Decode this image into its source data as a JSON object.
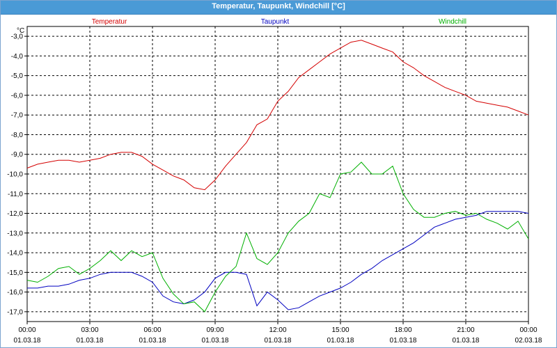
{
  "window_title": "Temperatur, Taupunkt, Windchill [°C]",
  "chart_data": {
    "type": "line",
    "title": "Temperatur, Taupunkt, Windchill [°C]",
    "ylabel": "°C",
    "ylim": [
      -17.5,
      -2.5
    ],
    "grid": true,
    "xlim": [
      "01.03.18 00:00",
      "02.03.18 00:00"
    ],
    "y_ticks": [
      "-3,0",
      "-4,0",
      "-5,0",
      "-6,0",
      "-7,0",
      "-8,0",
      "-9,0",
      "-10,0",
      "-11,0",
      "-12,0",
      "-13,0",
      "-14,0",
      "-15,0",
      "-16,0",
      "-17,0"
    ],
    "x_ticks": [
      {
        "time": "00:00",
        "date": "01.03.18"
      },
      {
        "time": "03:00",
        "date": "01.03.18"
      },
      {
        "time": "06:00",
        "date": "01.03.18"
      },
      {
        "time": "09:00",
        "date": "01.03.18"
      },
      {
        "time": "12:00",
        "date": "01.03.18"
      },
      {
        "time": "15:00",
        "date": "01.03.18"
      },
      {
        "time": "18:00",
        "date": "01.03.18"
      },
      {
        "time": "21:00",
        "date": "01.03.18"
      },
      {
        "time": "00:00",
        "date": "02.03.18"
      }
    ],
    "series": [
      {
        "name": "Temperatur",
        "color": "#d40000",
        "x": [
          0,
          0.5,
          1,
          1.5,
          2,
          2.5,
          3,
          3.5,
          4,
          4.5,
          5,
          5.5,
          6,
          6.5,
          7,
          7.5,
          8,
          8.5,
          9,
          9.5,
          10,
          10.5,
          11,
          11.5,
          12,
          12.5,
          13,
          13.5,
          14,
          14.5,
          15,
          15.5,
          16,
          16.5,
          17,
          17.5,
          18,
          18.5,
          19,
          19.5,
          20,
          20.5,
          21,
          21.5,
          22,
          22.5,
          23,
          23.5,
          24
        ],
        "y": [
          -9.7,
          -9.5,
          -9.4,
          -9.3,
          -9.3,
          -9.4,
          -9.3,
          -9.2,
          -9.0,
          -8.9,
          -8.9,
          -9.1,
          -9.5,
          -9.8,
          -10.1,
          -10.3,
          -10.7,
          -10.8,
          -10.3,
          -9.6,
          -9.0,
          -8.4,
          -7.5,
          -7.2,
          -6.3,
          -5.8,
          -5.1,
          -4.7,
          -4.3,
          -3.9,
          -3.6,
          -3.3,
          -3.2,
          -3.4,
          -3.6,
          -3.8,
          -4.3,
          -4.6,
          -5.0,
          -5.3,
          -5.6,
          -5.8,
          -6.0,
          -6.3,
          -6.4,
          -6.5,
          -6.6,
          -6.8,
          -7.0
        ]
      },
      {
        "name": "Taupunkt",
        "color": "#0000c0",
        "x": [
          0,
          0.5,
          1,
          1.5,
          2,
          2.5,
          3,
          3.5,
          4,
          4.5,
          5,
          5.5,
          6,
          6.5,
          7,
          7.5,
          8,
          8.5,
          9,
          9.5,
          10,
          10.5,
          11,
          11.5,
          12,
          12.5,
          13,
          13.5,
          14,
          14.5,
          15,
          15.5,
          16,
          16.5,
          17,
          17.5,
          18,
          18.5,
          19,
          19.5,
          20,
          20.5,
          21,
          21.5,
          22,
          22.5,
          23,
          23.5,
          24
        ],
        "y": [
          -15.8,
          -15.8,
          -15.7,
          -15.7,
          -15.6,
          -15.4,
          -15.3,
          -15.1,
          -15.0,
          -15.0,
          -15.0,
          -15.2,
          -15.5,
          -16.2,
          -16.5,
          -16.6,
          -16.4,
          -16.0,
          -15.3,
          -15.0,
          -15.0,
          -15.1,
          -16.7,
          -16.0,
          -16.4,
          -16.9,
          -16.8,
          -16.5,
          -16.2,
          -16.0,
          -15.8,
          -15.5,
          -15.1,
          -14.8,
          -14.4,
          -14.1,
          -13.8,
          -13.5,
          -13.1,
          -12.7,
          -12.5,
          -12.3,
          -12.2,
          -12.1,
          -11.9,
          -11.9,
          -11.9,
          -11.9,
          -12.0
        ]
      },
      {
        "name": "Windchill",
        "color": "#00b000",
        "x": [
          0,
          0.5,
          1,
          1.5,
          2,
          2.5,
          3,
          3.5,
          4,
          4.5,
          5,
          5.5,
          6,
          6.5,
          7,
          7.5,
          8,
          8.5,
          9,
          9.5,
          10,
          10.5,
          11,
          11.5,
          12,
          12.5,
          13,
          13.5,
          14,
          14.5,
          15,
          15.5,
          16,
          16.5,
          17,
          17.5,
          18,
          18.5,
          19,
          19.5,
          20,
          20.5,
          21,
          21.5,
          22,
          22.5,
          23,
          23.5,
          24
        ],
        "y": [
          -15.4,
          -15.5,
          -15.2,
          -14.8,
          -14.7,
          -15.1,
          -14.8,
          -14.4,
          -13.9,
          -14.4,
          -13.9,
          -14.2,
          -14.0,
          -15.3,
          -16.1,
          -16.6,
          -16.5,
          -17.0,
          -16.0,
          -15.2,
          -14.7,
          -13.0,
          -14.3,
          -14.6,
          -14.0,
          -13.0,
          -12.4,
          -12.0,
          -11.0,
          -11.2,
          -10.0,
          -9.9,
          -9.4,
          -10.0,
          -10.0,
          -9.6,
          -11.0,
          -11.8,
          -12.2,
          -12.2,
          -12.0,
          -11.9,
          -12.1,
          -12.0,
          -12.3,
          -12.5,
          -12.8,
          -12.4,
          -13.3
        ]
      }
    ]
  }
}
